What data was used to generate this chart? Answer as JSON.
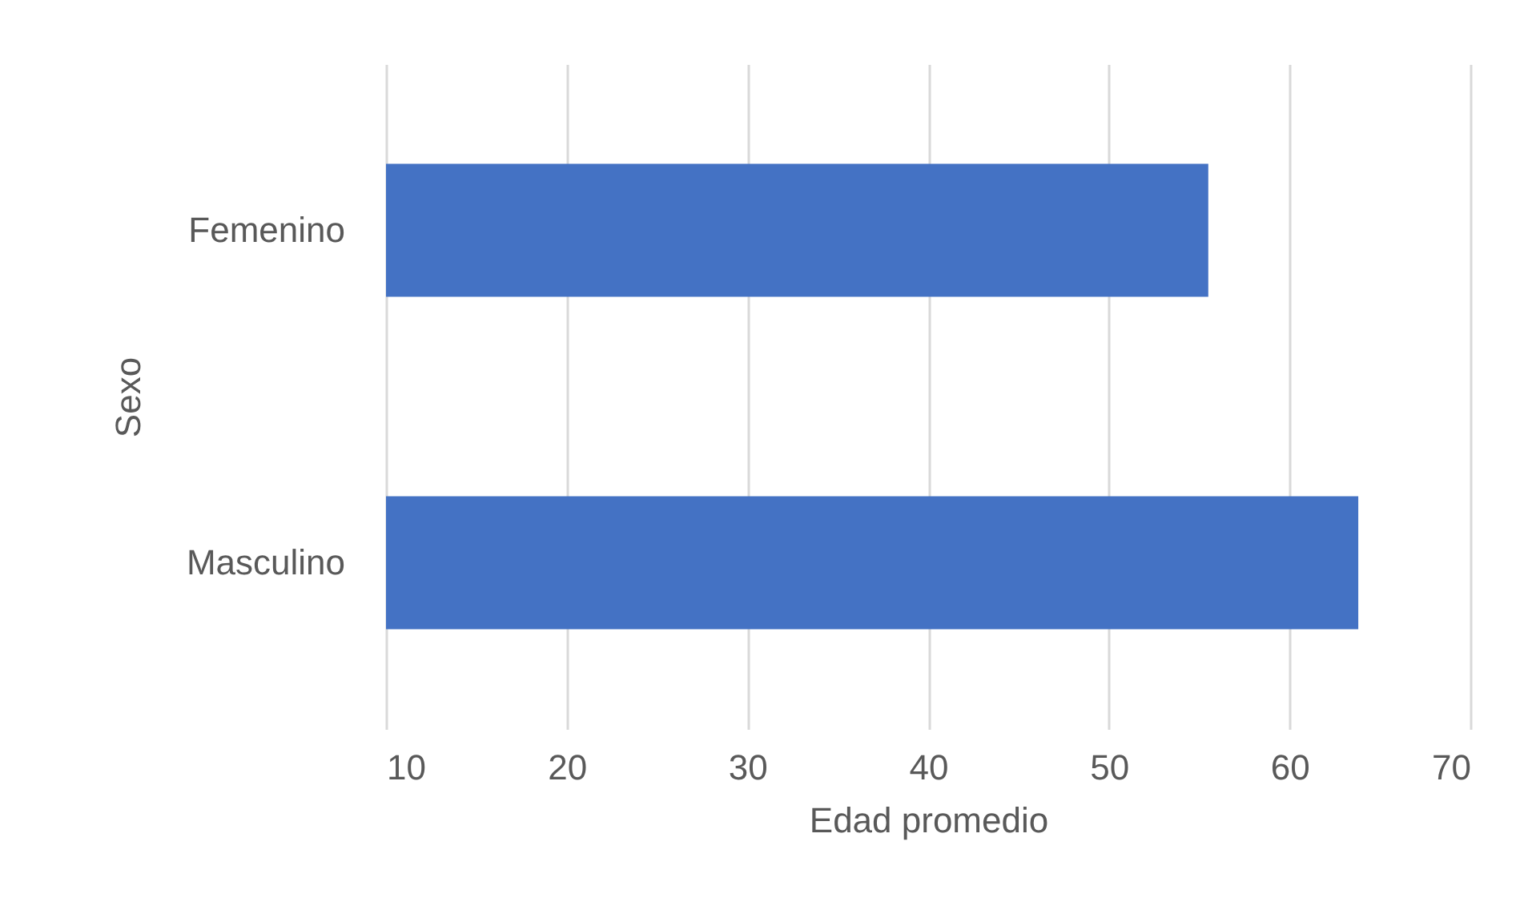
{
  "chart_data": {
    "type": "bar",
    "orientation": "horizontal",
    "xlabel": "Edad promedio",
    "ylabel": "Sexo",
    "categories": [
      "Femenino",
      "Masculino"
    ],
    "values": [
      55.5,
      63.8
    ],
    "color": "#4472c4",
    "xlim": [
      10,
      70
    ],
    "xticks": [
      10,
      20,
      30,
      40,
      50,
      60,
      70
    ],
    "grid": "x"
  }
}
